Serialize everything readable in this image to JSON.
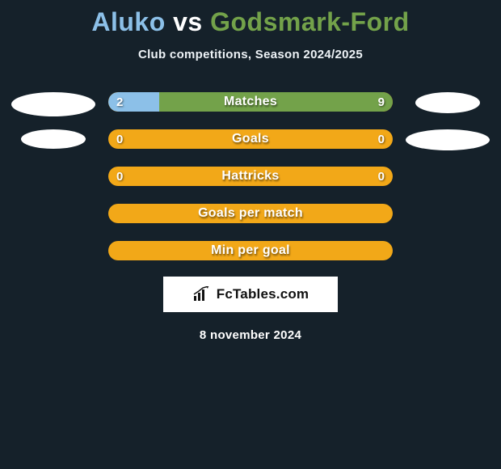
{
  "title": {
    "player1": "Aluko",
    "vs": "vs",
    "player2": "Godsmark-Ford",
    "player1_color": "#8cc0e8",
    "vs_color": "#ffffff",
    "player2_color": "#73a24a"
  },
  "subtitle": "Club competitions, Season 2024/2025",
  "background_color": "#15212a",
  "avatar_color": "#ffffff",
  "bar_defaults": {
    "track_color": "#f2a818",
    "left_color": "#8cc0e8",
    "right_color": "#73a24a",
    "height": 24,
    "radius": 12,
    "label_fontsize": 16,
    "value_fontsize": 15
  },
  "stats": [
    {
      "label": "Matches",
      "left_value": "2",
      "right_value": "9",
      "left_pct": 18,
      "right_pct": 82,
      "left_avatar_w": 104,
      "left_avatar_h": 30,
      "right_avatar_w": 80,
      "right_avatar_h": 26
    },
    {
      "label": "Goals",
      "left_value": "0",
      "right_value": "0",
      "left_pct": 0,
      "right_pct": 0,
      "left_avatar_w": 80,
      "left_avatar_h": 24,
      "right_avatar_w": 104,
      "right_avatar_h": 26
    },
    {
      "label": "Hattricks",
      "left_value": "0",
      "right_value": "0",
      "left_pct": 0,
      "right_pct": 0,
      "left_avatar_w": 0,
      "left_avatar_h": 0,
      "right_avatar_w": 0,
      "right_avatar_h": 0
    },
    {
      "label": "Goals per match",
      "left_value": "",
      "right_value": "",
      "left_pct": 0,
      "right_pct": 0,
      "left_avatar_w": 0,
      "left_avatar_h": 0,
      "right_avatar_w": 0,
      "right_avatar_h": 0
    },
    {
      "label": "Min per goal",
      "left_value": "",
      "right_value": "",
      "left_pct": 0,
      "right_pct": 0,
      "left_avatar_w": 0,
      "left_avatar_h": 0,
      "right_avatar_w": 0,
      "right_avatar_h": 0
    }
  ],
  "brand": {
    "text": "FcTables.com",
    "box_bg": "#ffffff",
    "text_color": "#111111"
  },
  "date": "8 november 2024"
}
